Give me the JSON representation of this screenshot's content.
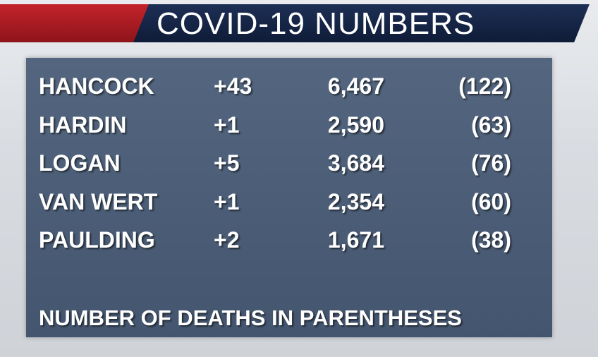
{
  "header": {
    "title": "COVID-19 NUMBERS"
  },
  "table": {
    "rows": [
      [
        "HANCOCK",
        "+43",
        "6,467",
        "(122)"
      ],
      [
        "HARDIN",
        "+1",
        "2,590",
        "(63)"
      ],
      [
        "LOGAN",
        "+5",
        "3,684",
        "(76)"
      ],
      [
        "VAN WERT",
        "+1",
        "2,354",
        "(60)"
      ],
      [
        "PAULDING",
        "+2",
        "1,671",
        "(38)"
      ]
    ]
  },
  "footer": {
    "note": "NUMBER OF DEATHS IN PARENTHESES"
  }
}
